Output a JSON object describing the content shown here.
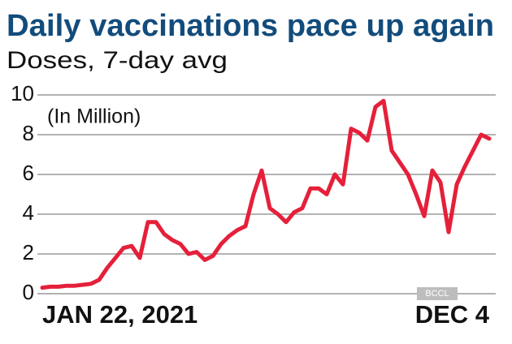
{
  "chart_data": {
    "type": "line",
    "title": "Daily vaccinations pace up again",
    "subtitle": "Doses, 7-day avg",
    "annotation": "(In Million)",
    "watermark": "BCCL",
    "categories": [
      "JAN 22, 2021",
      null,
      null,
      null,
      null,
      null,
      null,
      null,
      null,
      null,
      null,
      null,
      null,
      null,
      null,
      null,
      null,
      null,
      null,
      null,
      null,
      null,
      null,
      null,
      null,
      null,
      null,
      null,
      null,
      null,
      null,
      null,
      null,
      null,
      null,
      null,
      null,
      null,
      null,
      null,
      null,
      null,
      null,
      null,
      null,
      null,
      null,
      null,
      null,
      null,
      null,
      null,
      null,
      null,
      null,
      "DEC 4"
    ],
    "series": [
      {
        "color": "#e5203a",
        "values": [
          0.3,
          0.35,
          0.35,
          0.4,
          0.4,
          0.45,
          0.5,
          0.7,
          1.3,
          1.8,
          2.3,
          2.4,
          1.8,
          3.6,
          3.6,
          3.0,
          2.7,
          2.5,
          2.0,
          2.1,
          1.7,
          1.9,
          2.5,
          2.9,
          3.2,
          3.4,
          5.0,
          6.2,
          4.3,
          4.0,
          3.6,
          4.1,
          4.3,
          5.3,
          5.3,
          5.0,
          6.0,
          5.5,
          8.3,
          8.1,
          7.7,
          9.4,
          9.7,
          7.2,
          6.6,
          6.0,
          5.0,
          3.9,
          6.2,
          5.6,
          3.1,
          5.5,
          6.4,
          7.2,
          8.0,
          7.8
        ]
      }
    ],
    "ylim": [
      0,
      10
    ],
    "yticks": [
      0,
      2,
      4,
      6,
      8,
      10
    ],
    "grid": true
  }
}
